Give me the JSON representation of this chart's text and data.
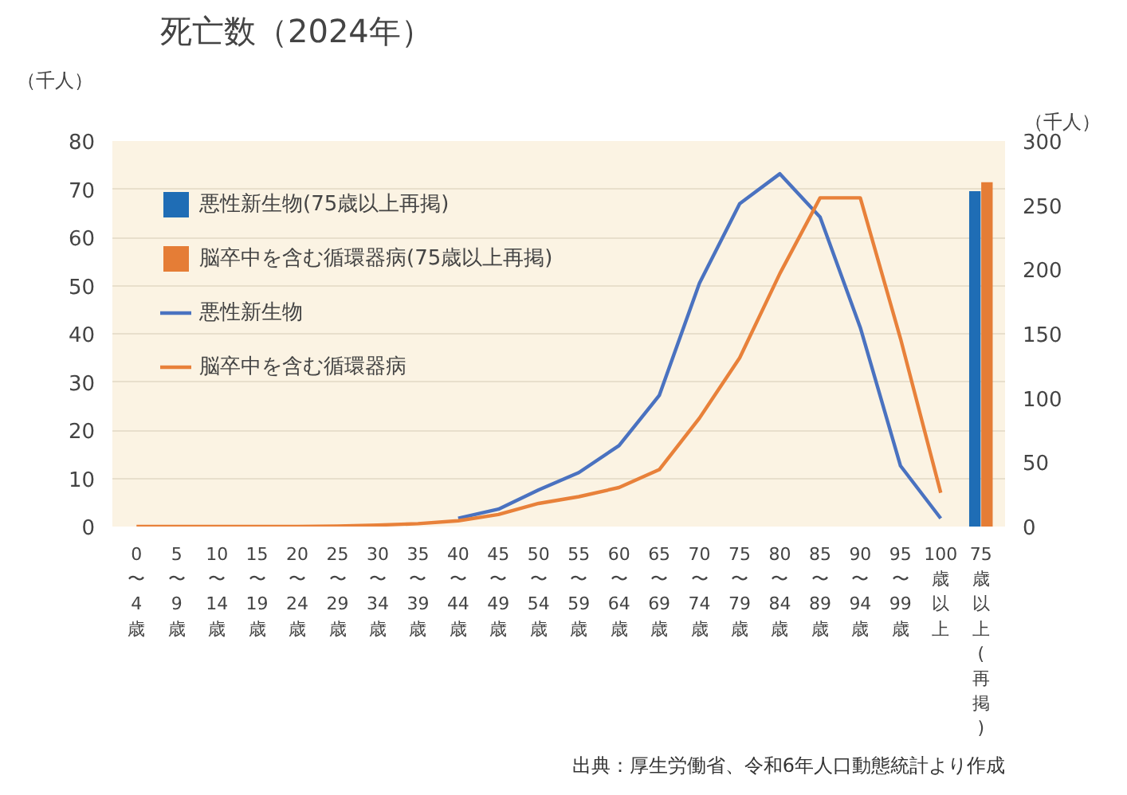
{
  "chart_data": {
    "type": "line",
    "title": "死亡数（2024年）",
    "ylabel": "（千人）",
    "y2label": "（千人）",
    "categories": [
      "0〜4歳",
      "5〜9歳",
      "10〜14歳",
      "15〜19歳",
      "20〜24歳",
      "25〜29歳",
      "30〜34歳",
      "35〜39歳",
      "40〜44歳",
      "45〜49歳",
      "50〜54歳",
      "55〜59歳",
      "60〜64歳",
      "65〜69歳",
      "70〜74歳",
      "75〜79歳",
      "80〜84歳",
      "85〜89歳",
      "90〜94歳",
      "95〜99歳",
      "100歳以上",
      "75歳以上(再掲)"
    ],
    "series": [
      {
        "name": "悪性新生物(75歳以上再掲)",
        "type": "bar",
        "axis": "y2",
        "color": "#1f6db5",
        "values": [
          null,
          null,
          null,
          null,
          null,
          null,
          null,
          null,
          null,
          null,
          null,
          null,
          null,
          null,
          null,
          null,
          null,
          null,
          null,
          null,
          null,
          261
        ]
      },
      {
        "name": "脳卒中を含む循環器病(75歳以上再掲)",
        "type": "bar",
        "axis": "y2",
        "color": "#e57d36",
        "values": [
          null,
          null,
          null,
          null,
          null,
          null,
          null,
          null,
          null,
          null,
          null,
          null,
          null,
          null,
          null,
          null,
          null,
          null,
          null,
          null,
          null,
          268
        ]
      },
      {
        "name": "悪性新生物",
        "color": "#4a72c0",
        "values": [
          null,
          null,
          null,
          null,
          null,
          null,
          null,
          null,
          1.7,
          3.6,
          7.6,
          11.2,
          16.8,
          27.2,
          50.5,
          67,
          73.2,
          64.2,
          41.3,
          12.6,
          1.7,
          null
        ]
      },
      {
        "name": "脳卒中を含む循環器病",
        "color": "#e8813a",
        "values": [
          0,
          0,
          0,
          0,
          0,
          0.1,
          0.3,
          0.6,
          1.2,
          2.5,
          4.8,
          6.2,
          8.1,
          11.8,
          22.5,
          35,
          52.5,
          68.2,
          68.2,
          39,
          7,
          null
        ]
      }
    ],
    "ylim": [
      0,
      80
    ],
    "yticks": [
      0,
      10,
      20,
      30,
      40,
      50,
      60,
      70,
      80
    ],
    "y2lim": [
      0,
      300
    ],
    "y2ticks": [
      0,
      50,
      100,
      150,
      200,
      250,
      300
    ],
    "grid": "y",
    "legend": "top left",
    "marker": "none",
    "line_style": "solid",
    "annotations": [
      "出典：厚生労働省、令和6年人口動態統計より作成"
    ]
  }
}
